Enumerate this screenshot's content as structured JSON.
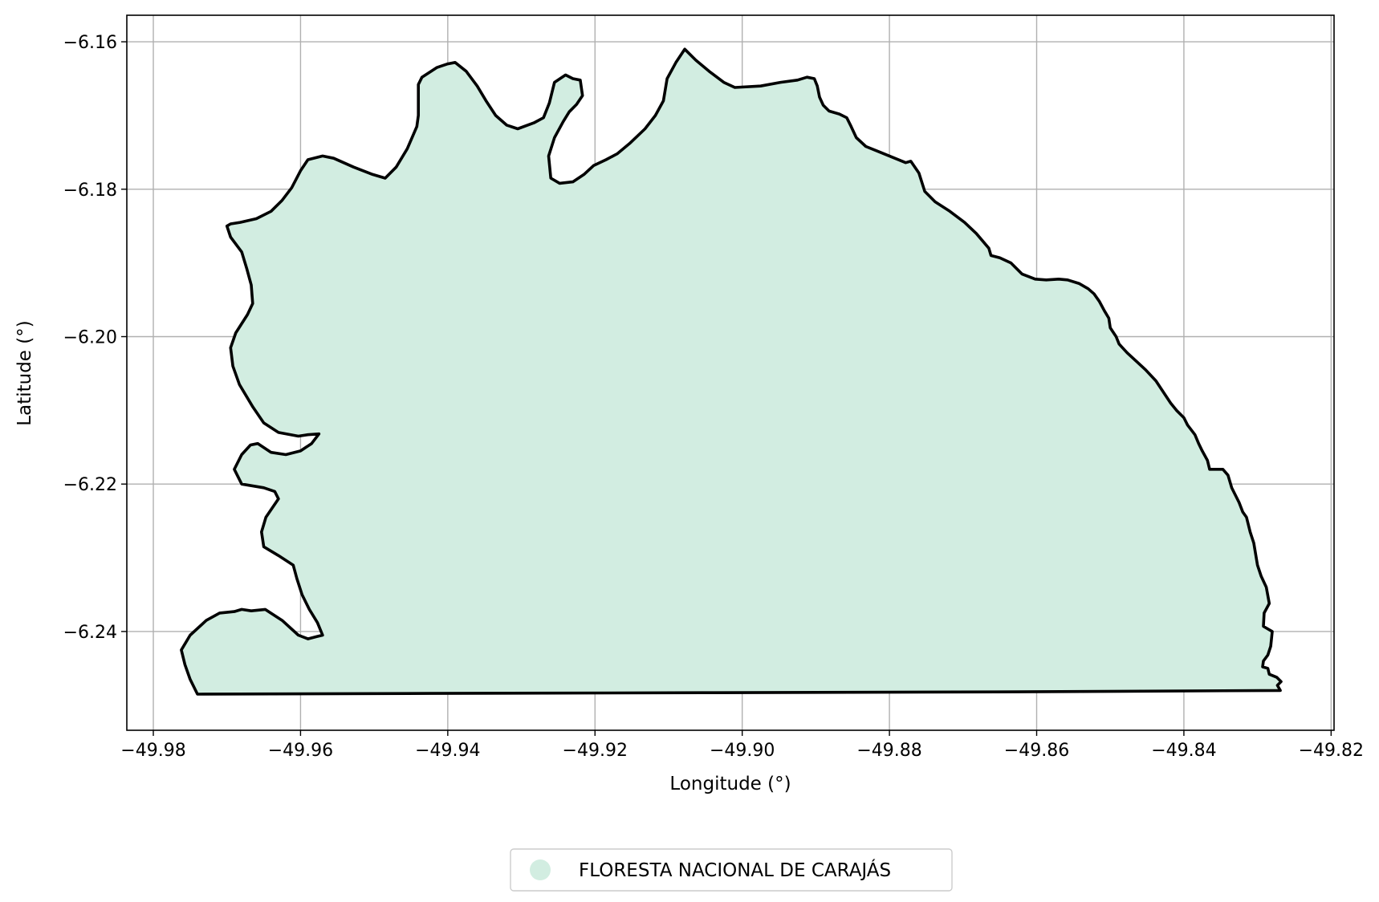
{
  "chart_data": {
    "type": "map",
    "title": "",
    "xlabel": "Longitude (°)",
    "ylabel": "Latitude (°)",
    "xlim": [
      -49.9836,
      -49.8196
    ],
    "ylim": [
      -6.2534,
      -6.1564
    ],
    "xticks": [
      -49.98,
      -49.96,
      -49.94,
      -49.92,
      -49.9,
      -49.88,
      -49.86,
      -49.84,
      -49.82
    ],
    "xtick_labels": [
      "−49.98",
      "−49.96",
      "−49.94",
      "−49.92",
      "−49.90",
      "−49.88",
      "−49.86",
      "−49.84",
      "−49.82"
    ],
    "yticks": [
      -6.16,
      -6.18,
      -6.2,
      -6.22,
      -6.24
    ],
    "ytick_labels": [
      "−6.16",
      "−6.18",
      "−6.20",
      "−6.22",
      "−6.24"
    ],
    "grid": true,
    "legend_position": "bottom-center",
    "series": [
      {
        "name": "FLORESTA NACIONAL DE CARAJÁS",
        "fill_color": "#d2ede1",
        "edge_color": "#000000",
        "boundary": [
          [
            -49.974,
            -6.2485
          ],
          [
            -49.9425,
            -6.2484
          ],
          [
            -49.9055,
            -6.2483
          ],
          [
            -49.8655,
            -6.2482
          ],
          [
            -49.8269,
            -6.248
          ],
          [
            -49.8273,
            -6.2473
          ],
          [
            -49.8268,
            -6.2468
          ],
          [
            -49.8274,
            -6.2462
          ],
          [
            -49.8284,
            -6.2458
          ],
          [
            -49.8286,
            -6.245
          ],
          [
            -49.8293,
            -6.2448
          ],
          [
            -49.8292,
            -6.244
          ],
          [
            -49.8286,
            -6.2432
          ],
          [
            -49.8282,
            -6.242
          ],
          [
            -49.828,
            -6.24
          ],
          [
            -49.8292,
            -6.2393
          ],
          [
            -49.8291,
            -6.2375
          ],
          [
            -49.8284,
            -6.2362
          ],
          [
            -49.8288,
            -6.234
          ],
          [
            -49.8295,
            -6.2325
          ],
          [
            -49.83,
            -6.231
          ],
          [
            -49.8305,
            -6.228
          ],
          [
            -49.831,
            -6.2265
          ],
          [
            -49.8315,
            -6.2245
          ],
          [
            -49.832,
            -6.2238
          ],
          [
            -49.8325,
            -6.2225
          ],
          [
            -49.833,
            -6.2215
          ],
          [
            -49.8335,
            -6.2205
          ],
          [
            -49.8338,
            -6.2195
          ],
          [
            -49.834,
            -6.2188
          ],
          [
            -49.8347,
            -6.218
          ],
          [
            -49.8365,
            -6.218
          ],
          [
            -49.8368,
            -6.2168
          ],
          [
            -49.8375,
            -6.2155
          ],
          [
            -49.838,
            -6.2145
          ],
          [
            -49.8385,
            -6.2133
          ],
          [
            -49.8395,
            -6.212
          ],
          [
            -49.84,
            -6.211
          ],
          [
            -49.841,
            -6.21
          ],
          [
            -49.8418,
            -6.209
          ],
          [
            -49.8428,
            -6.2075
          ],
          [
            -49.8438,
            -6.206
          ],
          [
            -49.8452,
            -6.2045
          ],
          [
            -49.8465,
            -6.2033
          ],
          [
            -49.8477,
            -6.2022
          ],
          [
            -49.8488,
            -6.201
          ],
          [
            -49.8492,
            -6.2
          ],
          [
            -49.85,
            -6.1988
          ],
          [
            -49.8502,
            -6.1975
          ],
          [
            -49.8508,
            -6.1965
          ],
          [
            -49.8515,
            -6.1952
          ],
          [
            -49.8522,
            -6.1942
          ],
          [
            -49.853,
            -6.1935
          ],
          [
            -49.8542,
            -6.1928
          ],
          [
            -49.8558,
            -6.1923
          ],
          [
            -49.857,
            -6.1922
          ],
          [
            -49.8587,
            -6.1923
          ],
          [
            -49.8602,
            -6.1922
          ],
          [
            -49.862,
            -6.1915
          ],
          [
            -49.8635,
            -6.19
          ],
          [
            -49.865,
            -6.1893
          ],
          [
            -49.8662,
            -6.189
          ],
          [
            -49.8665,
            -6.188
          ],
          [
            -49.8682,
            -6.186
          ],
          [
            -49.8698,
            -6.1845
          ],
          [
            -49.8718,
            -6.183
          ],
          [
            -49.8738,
            -6.1817
          ],
          [
            -49.8752,
            -6.1803
          ],
          [
            -49.876,
            -6.1778
          ],
          [
            -49.8771,
            -6.1762
          ],
          [
            -49.8778,
            -6.1764
          ],
          [
            -49.8795,
            -6.1757
          ],
          [
            -49.8812,
            -6.175
          ],
          [
            -49.8832,
            -6.1742
          ],
          [
            -49.8845,
            -6.173
          ],
          [
            -49.8852,
            -6.1715
          ],
          [
            -49.8858,
            -6.1703
          ],
          [
            -49.8868,
            -6.1698
          ],
          [
            -49.8882,
            -6.1694
          ],
          [
            -49.889,
            -6.1686
          ],
          [
            -49.8895,
            -6.1675
          ],
          [
            -49.8898,
            -6.166
          ],
          [
            -49.8902,
            -6.165
          ],
          [
            -49.8912,
            -6.1648
          ],
          [
            -49.8925,
            -6.1652
          ],
          [
            -49.8948,
            -6.1655
          ],
          [
            -49.8975,
            -6.166
          ],
          [
            -49.901,
            -6.1662
          ],
          [
            -49.9025,
            -6.1655
          ],
          [
            -49.9045,
            -6.164
          ],
          [
            -49.9063,
            -6.1625
          ],
          [
            -49.9078,
            -6.161
          ],
          [
            -49.909,
            -6.1628
          ],
          [
            -49.9102,
            -6.165
          ],
          [
            -49.9107,
            -6.168
          ],
          [
            -49.9118,
            -6.17
          ],
          [
            -49.9132,
            -6.1718
          ],
          [
            -49.9153,
            -6.1738
          ],
          [
            -49.917,
            -6.1752
          ],
          [
            -49.9185,
            -6.176
          ],
          [
            -49.9202,
            -6.1768
          ],
          [
            -49.9215,
            -6.178
          ],
          [
            -49.923,
            -6.179
          ],
          [
            -49.9248,
            -6.1792
          ],
          [
            -49.926,
            -6.1785
          ],
          [
            -49.9263,
            -6.1755
          ],
          [
            -49.9255,
            -6.173
          ],
          [
            -49.9243,
            -6.1708
          ],
          [
            -49.9235,
            -6.1695
          ],
          [
            -49.9225,
            -6.1685
          ],
          [
            -49.9217,
            -6.1673
          ],
          [
            -49.922,
            -6.1652
          ],
          [
            -49.923,
            -6.165
          ],
          [
            -49.924,
            -6.1645
          ],
          [
            -49.9255,
            -6.1655
          ],
          [
            -49.9262,
            -6.1683
          ],
          [
            -49.927,
            -6.1703
          ],
          [
            -49.9283,
            -6.171
          ],
          [
            -49.9305,
            -6.1718
          ],
          [
            -49.932,
            -6.1713
          ],
          [
            -49.9335,
            -6.17
          ],
          [
            -49.9348,
            -6.168
          ],
          [
            -49.936,
            -6.166
          ],
          [
            -49.9375,
            -6.164
          ],
          [
            -49.939,
            -6.1628
          ],
          [
            -49.94,
            -6.163
          ],
          [
            -49.9415,
            -6.1635
          ],
          [
            -49.9435,
            -6.1648
          ],
          [
            -49.944,
            -6.1658
          ],
          [
            -49.944,
            -6.17
          ],
          [
            -49.9442,
            -6.1715
          ],
          [
            -49.9455,
            -6.1745
          ],
          [
            -49.947,
            -6.177
          ],
          [
            -49.9485,
            -6.1785
          ],
          [
            -49.9502,
            -6.178
          ],
          [
            -49.9528,
            -6.177
          ],
          [
            -49.9555,
            -6.1758
          ],
          [
            -49.957,
            -6.1755
          ],
          [
            -49.959,
            -6.176
          ],
          [
            -49.96,
            -6.1775
          ],
          [
            -49.9612,
            -6.1798
          ],
          [
            -49.9625,
            -6.1815
          ],
          [
            -49.964,
            -6.183
          ],
          [
            -49.966,
            -6.184
          ],
          [
            -49.9682,
            -6.1845
          ],
          [
            -49.9695,
            -6.1847
          ],
          [
            -49.97,
            -6.185
          ],
          [
            -49.9695,
            -6.1865
          ],
          [
            -49.968,
            -6.1885
          ],
          [
            -49.9673,
            -6.1908
          ],
          [
            -49.9667,
            -6.193
          ],
          [
            -49.9665,
            -6.1955
          ],
          [
            -49.9672,
            -6.197
          ],
          [
            -49.9688,
            -6.1995
          ],
          [
            -49.9695,
            -6.2015
          ],
          [
            -49.9692,
            -6.204
          ],
          [
            -49.9683,
            -6.2065
          ],
          [
            -49.9665,
            -6.2095
          ],
          [
            -49.965,
            -6.2117
          ],
          [
            -49.963,
            -6.213
          ],
          [
            -49.9603,
            -6.2135
          ],
          [
            -49.959,
            -6.2133
          ],
          [
            -49.9575,
            -6.2132
          ],
          [
            -49.9585,
            -6.2145
          ],
          [
            -49.96,
            -6.2155
          ],
          [
            -49.962,
            -6.216
          ],
          [
            -49.964,
            -6.2157
          ],
          [
            -49.9658,
            -6.2145
          ],
          [
            -49.9668,
            -6.2147
          ],
          [
            -49.968,
            -6.216
          ],
          [
            -49.969,
            -6.218
          ],
          [
            -49.968,
            -6.22
          ],
          [
            -49.965,
            -6.2205
          ],
          [
            -49.9635,
            -6.221
          ],
          [
            -49.963,
            -6.222
          ],
          [
            -49.9647,
            -6.2245
          ],
          [
            -49.9653,
            -6.2265
          ],
          [
            -49.965,
            -6.2285
          ],
          [
            -49.963,
            -6.2297
          ],
          [
            -49.961,
            -6.231
          ],
          [
            -49.9605,
            -6.2328
          ],
          [
            -49.9598,
            -6.235
          ],
          [
            -49.9588,
            -6.237
          ],
          [
            -49.9577,
            -6.2388
          ],
          [
            -49.957,
            -6.2405
          ],
          [
            -49.9578,
            -6.2407
          ],
          [
            -49.959,
            -6.241
          ],
          [
            -49.9603,
            -6.2405
          ],
          [
            -49.9625,
            -6.2385
          ],
          [
            -49.9648,
            -6.237
          ],
          [
            -49.9667,
            -6.2372
          ],
          [
            -49.968,
            -6.237
          ],
          [
            -49.969,
            -6.2373
          ],
          [
            -49.971,
            -6.2375
          ],
          [
            -49.9728,
            -6.2385
          ],
          [
            -49.975,
            -6.2405
          ],
          [
            -49.9762,
            -6.2425
          ],
          [
            -49.9757,
            -6.2445
          ],
          [
            -49.975,
            -6.2465
          ],
          [
            -49.974,
            -6.2485
          ]
        ]
      }
    ]
  }
}
